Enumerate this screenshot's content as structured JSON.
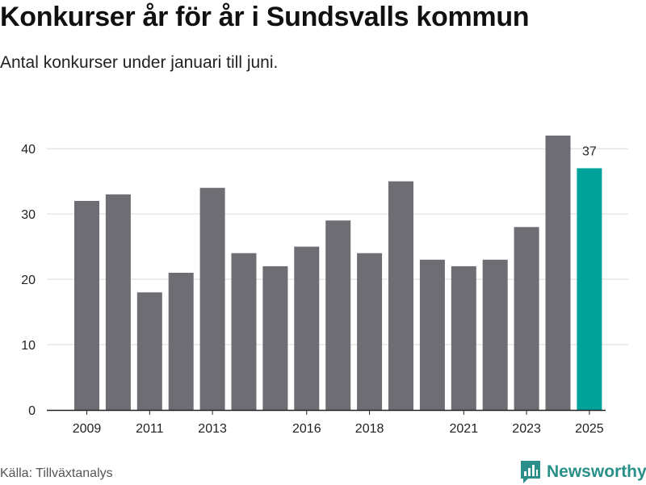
{
  "header": {
    "title": "Konkurser år för år i Sundsvalls kommun",
    "subtitle": "Antal konkurser under januari till juni."
  },
  "footer": {
    "source": "Källa: Tillväxtanalys",
    "brand": "Newsworthy",
    "brand_icon": "newsworthy-logo-icon"
  },
  "colors": {
    "bar": "#6e6d74",
    "highlight": "#00a39a",
    "grid": "#d9d9d9",
    "brand": "#2a8f88"
  },
  "chart_data": {
    "type": "bar",
    "title": "Konkurser år för år i Sundsvalls kommun",
    "subtitle": "Antal konkurser under januari till juni.",
    "categories": [
      "2009",
      "2010",
      "2011",
      "2012",
      "2013",
      "2014",
      "2015",
      "2016",
      "2017",
      "2018",
      "2019",
      "2020",
      "2021",
      "2022",
      "2023",
      "2024",
      "2025"
    ],
    "values": [
      32,
      33,
      18,
      21,
      34,
      24,
      22,
      25,
      29,
      24,
      35,
      23,
      22,
      23,
      28,
      42,
      37
    ],
    "x_tick_labels": [
      "2009",
      "2011",
      "2013",
      "2016",
      "2018",
      "2021",
      "2023",
      "2025"
    ],
    "y_ticks": [
      0,
      10,
      20,
      30,
      40
    ],
    "ylim": [
      0,
      42
    ],
    "highlight": {
      "category": "2025",
      "label": "37"
    },
    "grid": true,
    "xlabel": "",
    "ylabel": ""
  }
}
